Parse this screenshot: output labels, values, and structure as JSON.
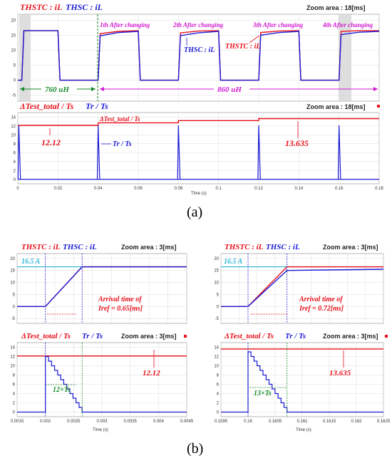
{
  "caption_a": "(a)",
  "caption_b": "(b)",
  "panel_a": {
    "top": {
      "title_red": "THSTC : iL",
      "title_blue": "THSC : iL",
      "zoom": "Zoom area : 18[ms]",
      "annotations": [
        "1th After changing",
        "2th After changing",
        "3th After changing",
        "4th After changing"
      ],
      "label_thsc": "THSC : iL",
      "label_thstc": "THSTC : iL",
      "inductance_before": "760 uH",
      "inductance_after": "860 uH"
    },
    "bottom": {
      "title_red": "ΔTest_total / Ts",
      "title_blue": "Tr / Ts",
      "zoom": "Zoom area : 18[ms]",
      "legend_red": "ΔTest_total / Ts",
      "label_left": "12.12",
      "label_right": "13.635",
      "label_tr": "Tr / Ts",
      "xlabel": "Time (s)"
    }
  },
  "panel_b_left": {
    "top": {
      "title_red": "THSTC : iL",
      "title_blue": "THSC : iL",
      "zoom": "Zoom area : 3[ms]",
      "ref_label": "16.5 A",
      "arrival_1": "Arrival time of",
      "arrival_2": "Iref = 0.65[ms]"
    },
    "bottom": {
      "title_red": "ΔTest_total / Ts",
      "title_blue": "Tr / Ts",
      "zoom": "Zoom area : 3[ms]",
      "value_label": "12.12",
      "count_label": "12×Ts",
      "xlabel": "Time (s)"
    }
  },
  "panel_b_right": {
    "top": {
      "title_red": "THSTC : iL",
      "title_blue": "THSC : iL",
      "zoom": "Zoom area : 3[ms]",
      "ref_label": "16.5 A",
      "arrival_1": "Arrival time of",
      "arrival_2": "Iref = 0.72[ms]"
    },
    "bottom": {
      "title_red": "ΔTest_total / Ts",
      "title_blue": "Tr / Ts",
      "zoom": "Zoom area : 3[ms]",
      "value_label": "13.635",
      "count_label": "13×Ts",
      "xlabel": "Time (s)"
    }
  },
  "chart_data": [
    {
      "type": "line",
      "name_panel": "a-top",
      "title": "THSTC : iL  THSC : iL",
      "x_range": [
        0,
        0.18
      ],
      "ylim": [
        -7,
        22
      ],
      "yticks": [
        -5,
        0,
        5,
        10,
        15,
        20
      ],
      "grid": true,
      "series": [
        {
          "name": "THSTC : iL",
          "color": "#e8101a",
          "x": [
            0,
            0.002,
            0.003,
            0.02,
            0.021,
            0.04,
            0.041,
            0.05,
            0.06,
            0.061,
            0.08,
            0.081,
            0.09,
            0.1,
            0.101,
            0.12,
            0.121,
            0.13,
            0.14,
            0.141,
            0.16,
            0.161,
            0.17,
            0.18
          ],
          "y": [
            0,
            0,
            16.5,
            16.5,
            0,
            0,
            15.5,
            16.3,
            16.5,
            0,
            0,
            15.8,
            16.4,
            16.5,
            0,
            0,
            15.9,
            16.4,
            16.5,
            0,
            0,
            16.3,
            16.5,
            16.5
          ]
        },
        {
          "name": "THSC : iL",
          "color": "#1a1ad6",
          "x": [
            0,
            0.002,
            0.003,
            0.02,
            0.021,
            0.04,
            0.041,
            0.05,
            0.06,
            0.061,
            0.08,
            0.081,
            0.09,
            0.1,
            0.101,
            0.12,
            0.121,
            0.13,
            0.14,
            0.141,
            0.16,
            0.161,
            0.17,
            0.18
          ],
          "y": [
            0,
            0,
            16.5,
            16.5,
            0,
            0,
            14.8,
            15.9,
            16.3,
            0,
            0,
            14.9,
            15.8,
            16.3,
            0,
            0,
            15.0,
            15.9,
            16.3,
            0,
            0,
            15.2,
            16.0,
            16.3
          ]
        }
      ]
    },
    {
      "type": "line",
      "name_panel": "a-bottom",
      "title": "ΔTest_total / Ts  Tr / Ts",
      "xlabel": "Time (s)",
      "x_range": [
        0,
        0.18
      ],
      "xticks": [
        0,
        0.02,
        0.04,
        0.06,
        0.08,
        0.1,
        0.12,
        0.14,
        0.16,
        0.18
      ],
      "ylim": [
        -1,
        15
      ],
      "yticks": [
        0,
        2,
        4,
        6,
        8,
        10,
        12,
        14
      ],
      "grid": true,
      "series": [
        {
          "name": "ΔTest_total / Ts",
          "color": "#e8101a",
          "x": [
            0,
            0.04,
            0.04,
            0.08,
            0.08,
            0.12,
            0.12,
            0.18
          ],
          "y": [
            12.12,
            12.12,
            12.7,
            12.7,
            13.2,
            13.2,
            13.635,
            13.635
          ]
        },
        {
          "name": "Tr / Ts",
          "color": "#1a1ad6",
          "spikes_at": [
            0.0005,
            0.04,
            0.08,
            0.12,
            0.16
          ],
          "spike_height": 12.12
        }
      ]
    },
    {
      "type": "line",
      "name_panel": "b-left-top",
      "x_range": [
        0.0015,
        0.0045
      ],
      "ylim": [
        -7,
        22
      ],
      "yticks": [
        -5,
        0,
        5,
        10,
        15,
        20
      ],
      "grid": true,
      "reference": 16.5,
      "series": [
        {
          "name": "THSTC : iL",
          "color": "#e8101a",
          "x": [
            0.0015,
            0.002,
            0.00265,
            0.0045
          ],
          "y": [
            0,
            0,
            16.5,
            16.5
          ]
        },
        {
          "name": "THSC : iL",
          "color": "#1a1ad6",
          "x": [
            0.0015,
            0.002,
            0.00265,
            0.0045
          ],
          "y": [
            0,
            0,
            16.5,
            16.5
          ]
        }
      ]
    },
    {
      "type": "line",
      "name_panel": "b-left-bottom",
      "xlabel": "Time (s)",
      "x_range": [
        0.0015,
        0.0045
      ],
      "xticks": [
        0.0015,
        0.002,
        0.0025,
        0.003,
        0.0035,
        0.004,
        0.0045
      ],
      "ylim": [
        -1,
        15
      ],
      "yticks": [
        0,
        2,
        4,
        6,
        8,
        10,
        12,
        14
      ],
      "grid": true,
      "series": [
        {
          "name": "ΔTest_total / Ts",
          "color": "#e8101a",
          "x": [
            0.0015,
            0.0045
          ],
          "y": [
            12.12,
            12.12
          ]
        },
        {
          "name": "Tr / Ts",
          "color": "#1a1ad6",
          "staircase_start": 0.002,
          "staircase_end": 0.00265,
          "steps": 12,
          "start_value": 12
        }
      ]
    },
    {
      "type": "line",
      "name_panel": "b-right-top",
      "x_range": [
        0.1595,
        0.1625
      ],
      "ylim": [
        -7,
        22
      ],
      "yticks": [
        -5,
        0,
        5,
        10,
        15,
        20
      ],
      "grid": true,
      "reference": 16.5,
      "series": [
        {
          "name": "THSTC : iL",
          "color": "#e8101a",
          "x": [
            0.1595,
            0.16,
            0.16072,
            0.1625
          ],
          "y": [
            0,
            0,
            16.5,
            16.5
          ]
        },
        {
          "name": "THSC : iL",
          "color": "#1a1ad6",
          "x": [
            0.1595,
            0.16,
            0.16072,
            0.1625
          ],
          "y": [
            0,
            0,
            15.0,
            15.5
          ]
        }
      ]
    },
    {
      "type": "line",
      "name_panel": "b-right-bottom",
      "xlabel": "Time (s)",
      "x_range": [
        0.1595,
        0.1625
      ],
      "xticks": [
        0.1595,
        0.16,
        0.1605,
        0.161,
        0.1615,
        0.162,
        0.1625
      ],
      "ylim": [
        -1,
        15
      ],
      "yticks": [
        0,
        2,
        4,
        6,
        8,
        10,
        12,
        14
      ],
      "grid": true,
      "series": [
        {
          "name": "ΔTest_total / Ts",
          "color": "#e8101a",
          "x": [
            0.1595,
            0.1625
          ],
          "y": [
            13.635,
            13.635
          ]
        },
        {
          "name": "Tr / Ts",
          "color": "#1a1ad6",
          "staircase_start": 0.16,
          "staircase_end": 0.16072,
          "steps": 13,
          "start_value": 13
        }
      ]
    }
  ]
}
